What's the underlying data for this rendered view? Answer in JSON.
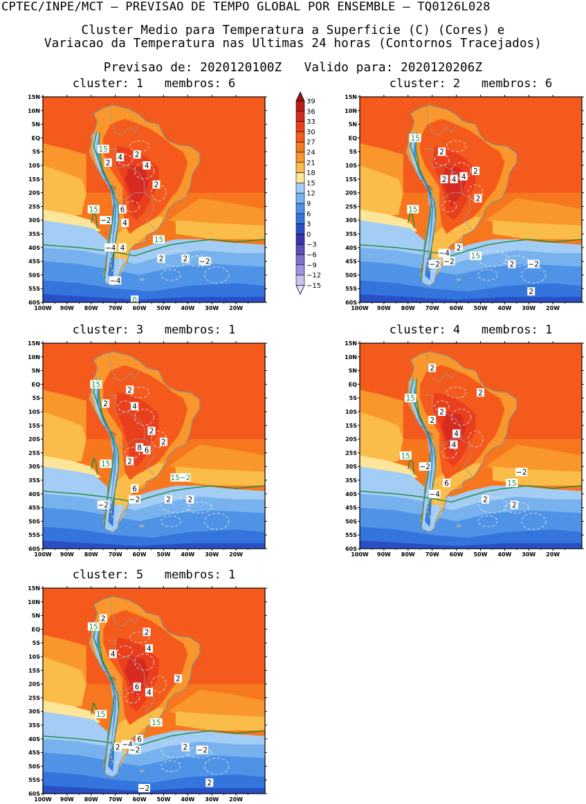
{
  "header": {
    "line1": "CPTEC/INPE/MCT — PREVISAO DE TEMPO GLOBAL POR ENSEMBLE — TQ0126L028",
    "line2": "Cluster Medio para Temperatura a Superficie (C) (Cores) e",
    "line3": "Variacao da Temperatura nas Ultimas 24 horas (Contornos Tracejados)",
    "line4": "Previsao de: 2020120100Z   Valido para: 2020120206Z"
  },
  "axes": {
    "lat_labels": [
      "15N",
      "10N",
      "5N",
      "EQ",
      "5S",
      "10S",
      "15S",
      "20S",
      "25S",
      "30S",
      "35S",
      "40S",
      "45S",
      "50S",
      "55S",
      "60S"
    ],
    "lon_labels": [
      "100W",
      "90W",
      "80W",
      "70W",
      "60W",
      "50W",
      "40W",
      "30W",
      "20W"
    ]
  },
  "colorbar": {
    "labels": [
      "39",
      "36",
      "33",
      "30",
      "27",
      "24",
      "21",
      "18",
      "15",
      "12",
      "9",
      "6",
      "3",
      "0",
      "-3",
      "-6",
      "-9",
      "-12",
      "-15"
    ],
    "colors": [
      "#9b1010",
      "#b81a18",
      "#d82a20",
      "#ea3f1c",
      "#f45a1c",
      "#f6771e",
      "#f9962c",
      "#fbbd4a",
      "#fde69a",
      "#a3cdf4",
      "#78b2ee",
      "#4e93e6",
      "#3375dc",
      "#2a4fc5",
      "#3a34b0",
      "#5a4fbd",
      "#7c6fd0",
      "#a092e0",
      "#c9bff0"
    ]
  },
  "panels": [
    {
      "title": "cluster: 1   membros: 6",
      "contour_labels": [
        {
          "t": "15",
          "g": true,
          "lon": -75,
          "lat": -4
        },
        {
          "t": "2",
          "lon": -73,
          "lat": -9
        },
        {
          "t": "4",
          "lon": -68,
          "lat": -7
        },
        {
          "t": "2",
          "lon": -61,
          "lat": -6
        },
        {
          "t": "4",
          "lon": -57,
          "lat": -10
        },
        {
          "t": "2",
          "lon": -53,
          "lat": -17
        },
        {
          "t": "6",
          "lon": -67,
          "lat": -26
        },
        {
          "t": "−2",
          "lon": -74,
          "lat": -30
        },
        {
          "t": "4",
          "lon": -66,
          "lat": -31
        },
        {
          "t": "15",
          "g": true,
          "lon": -79,
          "lat": -26
        },
        {
          "t": "15",
          "g": true,
          "lon": -52,
          "lat": -37
        },
        {
          "t": "−4",
          "lon": -72,
          "lat": -40
        },
        {
          "t": "4",
          "lon": -67,
          "lat": -40
        },
        {
          "t": "2",
          "lon": -51,
          "lat": -44
        },
        {
          "t": "2",
          "lon": -41,
          "lat": -44
        },
        {
          "t": "−2",
          "lon": -33,
          "lat": -45
        },
        {
          "t": "−4",
          "lon": -70,
          "lat": -52
        },
        {
          "t": "0",
          "g": true,
          "lon": -62,
          "lat": -59
        }
      ]
    },
    {
      "title": "cluster: 2   membros: 6",
      "contour_labels": [
        {
          "t": "15",
          "g": true,
          "lon": -77,
          "lat": 0
        },
        {
          "t": "2",
          "lon": -66,
          "lat": -5
        },
        {
          "t": "2",
          "lon": -65,
          "lat": -15
        },
        {
          "t": "4",
          "lon": -61,
          "lat": -15
        },
        {
          "t": "4",
          "lon": -57,
          "lat": -14
        },
        {
          "t": "2",
          "lon": -52,
          "lat": -12
        },
        {
          "t": "2",
          "lon": -51,
          "lat": -22
        },
        {
          "t": "15",
          "g": true,
          "lon": -78,
          "lat": -26
        },
        {
          "t": "−4",
          "lon": -65,
          "lat": -42
        },
        {
          "t": "2",
          "lon": -59,
          "lat": -40
        },
        {
          "t": "15",
          "g": true,
          "lon": -52,
          "lat": -43
        },
        {
          "t": "−2",
          "lon": -69,
          "lat": -46
        },
        {
          "t": "−2",
          "lon": -63,
          "lat": -45
        },
        {
          "t": "2",
          "lon": -37,
          "lat": -46
        },
        {
          "t": "−2",
          "lon": -28,
          "lat": -46
        },
        {
          "t": "2",
          "lon": -29,
          "lat": -56
        }
      ]
    },
    {
      "title": "cluster: 3   membros: 1",
      "contour_labels": [
        {
          "t": "15",
          "g": true,
          "lon": -78,
          "lat": 0
        },
        {
          "t": "2",
          "lon": -74,
          "lat": -7
        },
        {
          "t": "2",
          "lon": -64,
          "lat": -2
        },
        {
          "t": "4",
          "lon": -62,
          "lat": -8
        },
        {
          "t": "2",
          "lon": -55,
          "lat": -17
        },
        {
          "t": "2",
          "lon": -50,
          "lat": -21
        },
        {
          "t": "8",
          "lon": -60,
          "lat": -23
        },
        {
          "t": "6",
          "lon": -57,
          "lat": -24
        },
        {
          "t": "2",
          "lon": -64,
          "lat": -28
        },
        {
          "t": "15",
          "g": true,
          "lon": -74,
          "lat": -29
        },
        {
          "t": "15−2",
          "g": true,
          "lon": -43,
          "lat": -34
        },
        {
          "t": "6",
          "lon": -62,
          "lat": -38
        },
        {
          "t": "−2",
          "lon": -62,
          "lat": -42
        },
        {
          "t": "−2",
          "lon": -75,
          "lat": -44
        },
        {
          "t": "2",
          "lon": -48,
          "lat": -42
        },
        {
          "t": "2",
          "lon": -39,
          "lat": -42
        }
      ]
    },
    {
      "title": "cluster: 4   membros: 1",
      "contour_labels": [
        {
          "t": "2",
          "lon": -70,
          "lat": 6
        },
        {
          "t": "15",
          "g": true,
          "lon": -79,
          "lat": -5
        },
        {
          "t": "2",
          "lon": -66,
          "lat": -10
        },
        {
          "t": "2",
          "lon": -70,
          "lat": -13
        },
        {
          "t": "2",
          "lon": -50,
          "lat": -3
        },
        {
          "t": "4",
          "lon": -60,
          "lat": -18
        },
        {
          "t": "4",
          "lon": -61,
          "lat": -22
        },
        {
          "t": "15",
          "g": true,
          "lon": -81,
          "lat": -26
        },
        {
          "t": "−2",
          "lon": -73,
          "lat": -30
        },
        {
          "t": "6",
          "lon": -64,
          "lat": -36
        },
        {
          "t": "−4",
          "lon": -69,
          "lat": -40
        },
        {
          "t": "−2",
          "lon": -33,
          "lat": -32
        },
        {
          "t": "15",
          "g": true,
          "lon": -37,
          "lat": -36
        },
        {
          "t": "2",
          "lon": -48,
          "lat": -42
        },
        {
          "t": "2",
          "lon": -36,
          "lat": -44
        }
      ]
    },
    {
      "title": "cluster: 5   membros: 1",
      "contour_labels": [
        {
          "t": "15",
          "g": true,
          "lon": -79,
          "lat": 1
        },
        {
          "t": "2",
          "lon": -75,
          "lat": 4
        },
        {
          "t": "4",
          "lon": -71,
          "lat": -9
        },
        {
          "t": "2",
          "lon": -57,
          "lat": -1
        },
        {
          "t": "4",
          "lon": -56,
          "lat": -7
        },
        {
          "t": "2",
          "lon": -44,
          "lat": -18
        },
        {
          "t": "6",
          "lon": -61,
          "lat": -21
        },
        {
          "t": "4",
          "lon": -56,
          "lat": -23
        },
        {
          "t": "15",
          "g": true,
          "lon": -76,
          "lat": -31
        },
        {
          "t": "15",
          "g": true,
          "lon": -53,
          "lat": -34
        },
        {
          "t": "6",
          "lon": -60,
          "lat": -40
        },
        {
          "t": "−4",
          "lon": -65,
          "lat": -42
        },
        {
          "t": "2",
          "lon": -69,
          "lat": -43
        },
        {
          "t": "−2",
          "lon": -62,
          "lat": -44
        },
        {
          "t": "2",
          "lon": -41,
          "lat": -43
        },
        {
          "t": "−2",
          "lon": -34,
          "lat": -44
        },
        {
          "t": "−2",
          "lon": -58,
          "lat": -58
        },
        {
          "t": "2",
          "lon": -31,
          "lat": -56
        }
      ]
    }
  ]
}
